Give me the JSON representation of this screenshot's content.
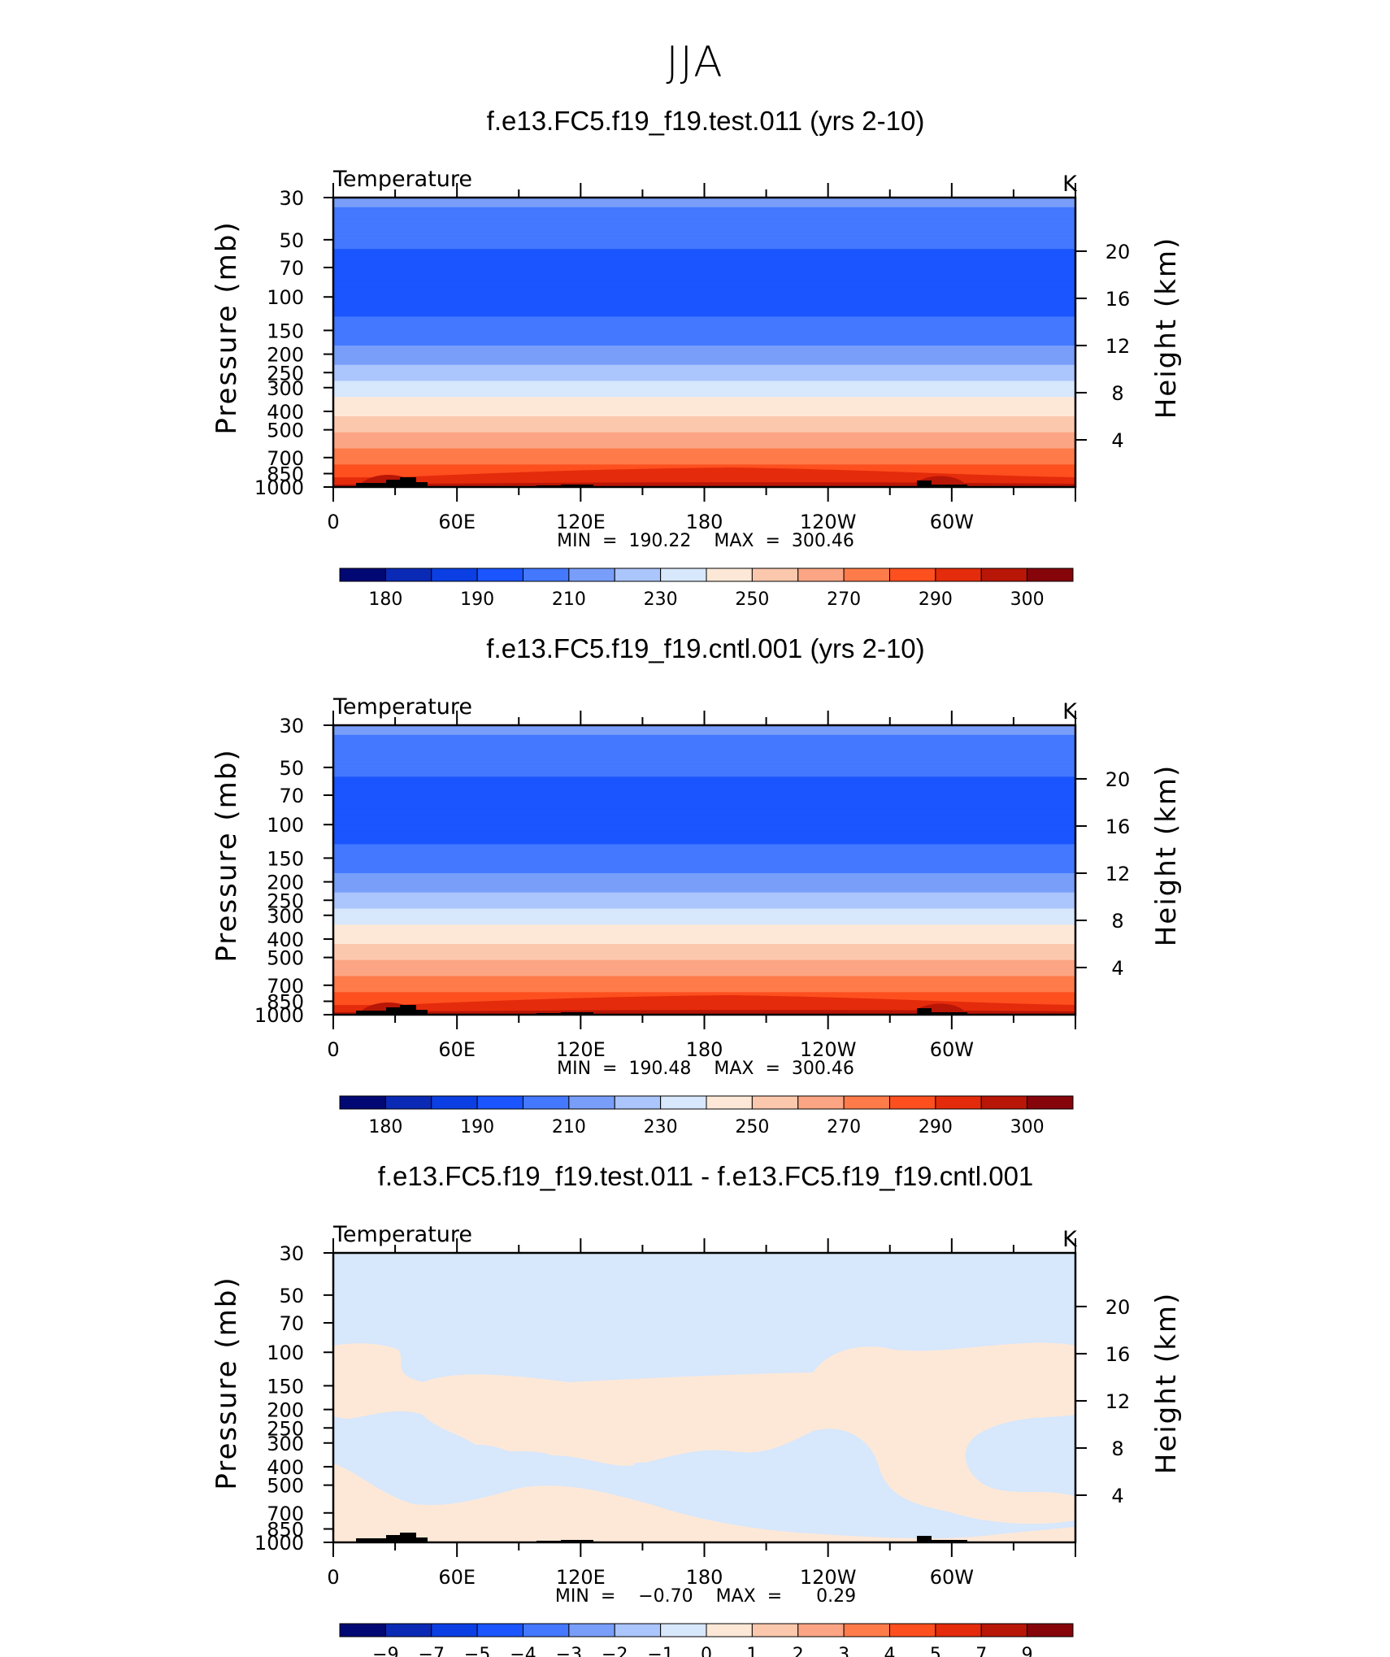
{
  "figure_title": "JJA",
  "chart_data": [
    {
      "type": "heatmap",
      "title": "f.e13.FC5.f19_f19.test.011 (yrs 2-10)",
      "left_label": "Temperature",
      "units": "K",
      "ylabel": "Pressure (mb)",
      "ylabel_right": "Height (km)",
      "x_ticks": [
        "0",
        "60E",
        "120E",
        "180",
        "120W",
        "60W"
      ],
      "y_ticks": [
        "30",
        "50",
        "70",
        "100",
        "150",
        "200",
        "250",
        "300",
        "400",
        "500",
        "700",
        "850",
        "1000"
      ],
      "y_ticks_right": [
        "20",
        "16",
        "12",
        "8",
        "4"
      ],
      "ylim": [
        1000,
        30
      ],
      "stats_text": "MIN  =  190.22    MAX  =  300.46",
      "min": 190.22,
      "max": 300.46,
      "levels": [
        180,
        185,
        190,
        200,
        210,
        220,
        230,
        240,
        250,
        260,
        270,
        280,
        290,
        295,
        300
      ],
      "colorbar_labels": [
        "180",
        "190",
        "210",
        "230",
        "250",
        "270",
        "290",
        "300"
      ],
      "profile": [
        {
          "p": 30,
          "T": 212
        },
        {
          "p": 45,
          "T": 204
        },
        {
          "p": 70,
          "T": 196
        },
        {
          "p": 100,
          "T": 195
        },
        {
          "p": 150,
          "T": 203
        },
        {
          "p": 200,
          "T": 213
        },
        {
          "p": 250,
          "T": 225
        },
        {
          "p": 300,
          "T": 235
        },
        {
          "p": 400,
          "T": 246
        },
        {
          "p": 500,
          "T": 258
        },
        {
          "p": 700,
          "T": 276
        },
        {
          "p": 850,
          "T": 287
        },
        {
          "p": 1000,
          "T": 297
        }
      ]
    },
    {
      "type": "heatmap",
      "title": "f.e13.FC5.f19_f19.cntl.001 (yrs 2-10)",
      "left_label": "Temperature",
      "units": "K",
      "ylabel": "Pressure (mb)",
      "ylabel_right": "Height (km)",
      "x_ticks": [
        "0",
        "60E",
        "120E",
        "180",
        "120W",
        "60W"
      ],
      "y_ticks": [
        "30",
        "50",
        "70",
        "100",
        "150",
        "200",
        "250",
        "300",
        "400",
        "500",
        "700",
        "850",
        "1000"
      ],
      "y_ticks_right": [
        "20",
        "16",
        "12",
        "8",
        "4"
      ],
      "ylim": [
        1000,
        30
      ],
      "stats_text": "MIN  =  190.48    MAX  =  300.46",
      "min": 190.48,
      "max": 300.46,
      "levels": [
        180,
        185,
        190,
        200,
        210,
        220,
        230,
        240,
        250,
        260,
        270,
        280,
        290,
        295,
        300
      ],
      "colorbar_labels": [
        "180",
        "190",
        "210",
        "230",
        "250",
        "270",
        "290",
        "300"
      ],
      "profile": [
        {
          "p": 30,
          "T": 212
        },
        {
          "p": 45,
          "T": 204
        },
        {
          "p": 70,
          "T": 196
        },
        {
          "p": 100,
          "T": 195
        },
        {
          "p": 150,
          "T": 203
        },
        {
          "p": 200,
          "T": 213
        },
        {
          "p": 250,
          "T": 225
        },
        {
          "p": 300,
          "T": 235
        },
        {
          "p": 400,
          "T": 246
        },
        {
          "p": 500,
          "T": 258
        },
        {
          "p": 700,
          "T": 276
        },
        {
          "p": 850,
          "T": 287
        },
        {
          "p": 1000,
          "T": 297
        }
      ]
    },
    {
      "type": "heatmap",
      "title": "f.e13.FC5.f19_f19.test.011 - f.e13.FC5.f19_f19.cntl.001",
      "left_label": "Temperature",
      "units": "K",
      "ylabel": "Pressure (mb)",
      "ylabel_right": "Height (km)",
      "x_ticks": [
        "0",
        "60E",
        "120E",
        "180",
        "120W",
        "60W"
      ],
      "y_ticks": [
        "30",
        "50",
        "70",
        "100",
        "150",
        "200",
        "250",
        "300",
        "400",
        "500",
        "700",
        "850",
        "1000"
      ],
      "y_ticks_right": [
        "20",
        "16",
        "12",
        "8",
        "4"
      ],
      "ylim": [
        1000,
        30
      ],
      "stats_text": "MIN  =    −0.70    MAX  =      0.29",
      "min": -0.7,
      "max": 0.29,
      "levels": [
        -9,
        -7,
        -5,
        -4,
        -3,
        -2,
        -1,
        0,
        1,
        2,
        3,
        4,
        5,
        7,
        9
      ],
      "colorbar_labels": [
        "−9",
        "−7",
        "−5",
        "−4",
        "−3",
        "−2",
        "−1",
        "0",
        "1",
        "2",
        "3",
        "4",
        "5",
        "7",
        "9"
      ],
      "note": "Differences are between -1 and +1 K everywhere: light blue = (-1, 0), light peach = (0, 1)"
    }
  ],
  "colors": {
    "palette": [
      "#020873",
      "#0a2ab5",
      "#0b3fe3",
      "#1a55ff",
      "#4378ff",
      "#789ef9",
      "#abc5fd",
      "#d7e7fc",
      "#fde8d7",
      "#fcc8ad",
      "#fca584",
      "#ff7b4a",
      "#fe4f1f",
      "#e42b0b",
      "#b81607",
      "#85050b"
    ],
    "diff_negative": "#d7e7fc",
    "diff_positive": "#fde8d7",
    "topography": "#000000"
  }
}
